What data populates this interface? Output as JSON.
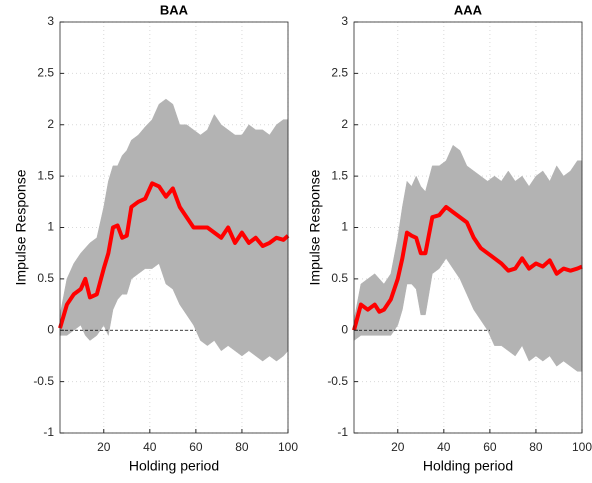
{
  "chart_data": [
    {
      "type": "line",
      "title": "BAA",
      "xlabel": "Holding period",
      "ylabel": "Impulse Response",
      "xlim": [
        1,
        100
      ],
      "xticks": [
        20,
        40,
        60,
        80,
        100
      ],
      "ylim": [
        -1,
        3
      ],
      "yticks": [
        -1,
        -0.5,
        0,
        0.5,
        1,
        1.5,
        2,
        2.5,
        3
      ],
      "grid": true,
      "x": [
        1,
        4,
        7,
        10,
        12,
        14,
        17,
        20,
        22,
        24,
        26,
        28,
        30,
        32,
        35,
        38,
        41,
        44,
        47,
        50,
        53,
        56,
        59,
        62,
        65,
        68,
        71,
        74,
        77,
        80,
        83,
        86,
        89,
        92,
        95,
        98,
        100
      ],
      "series": [
        {
          "color": "#ff0000",
          "values": [
            0.02,
            0.25,
            0.35,
            0.4,
            0.5,
            0.32,
            0.35,
            0.6,
            0.75,
            1.0,
            1.02,
            0.9,
            0.92,
            1.2,
            1.25,
            1.28,
            1.43,
            1.4,
            1.3,
            1.38,
            1.2,
            1.1,
            1.0,
            1.0,
            1.0,
            0.95,
            0.9,
            1.0,
            0.85,
            0.95,
            0.85,
            0.9,
            0.82,
            0.85,
            0.9,
            0.88,
            0.92
          ]
        }
      ],
      "band": {
        "color": "#b3b3b3",
        "upper": [
          0.15,
          0.5,
          0.65,
          0.75,
          0.8,
          0.85,
          0.9,
          1.2,
          1.45,
          1.6,
          1.6,
          1.7,
          1.75,
          1.85,
          1.9,
          1.98,
          2.05,
          2.2,
          2.25,
          2.2,
          2.0,
          2.0,
          1.95,
          1.9,
          1.95,
          2.1,
          2.0,
          1.95,
          1.9,
          1.9,
          2.0,
          1.95,
          1.95,
          1.9,
          2.0,
          2.05,
          2.05
        ],
        "lower": [
          -0.05,
          -0.05,
          0.0,
          0.05,
          -0.05,
          -0.1,
          -0.05,
          0.05,
          -0.05,
          0.2,
          0.3,
          0.35,
          0.35,
          0.5,
          0.55,
          0.6,
          0.6,
          0.65,
          0.45,
          0.4,
          0.25,
          0.15,
          0.05,
          -0.1,
          -0.15,
          -0.1,
          -0.2,
          -0.15,
          -0.2,
          -0.25,
          -0.2,
          -0.25,
          -0.3,
          -0.25,
          -0.3,
          -0.25,
          -0.2
        ]
      },
      "reference_line": {
        "value": 0,
        "x": [
          1,
          60
        ],
        "color": "#000000"
      }
    },
    {
      "type": "line",
      "title": "AAA",
      "xlabel": "Holding period",
      "ylabel": "Impulse Response",
      "xlim": [
        1,
        100
      ],
      "xticks": [
        20,
        40,
        60,
        80,
        100
      ],
      "ylim": [
        -1,
        3
      ],
      "yticks": [
        -1,
        -0.5,
        0,
        0.5,
        1,
        1.5,
        2,
        2.5,
        3
      ],
      "grid": true,
      "x": [
        1,
        4,
        7,
        10,
        12,
        14,
        17,
        20,
        22,
        24,
        26,
        28,
        30,
        32,
        35,
        38,
        41,
        44,
        47,
        50,
        53,
        56,
        59,
        62,
        65,
        68,
        71,
        74,
        77,
        80,
        83,
        86,
        89,
        92,
        95,
        98,
        100
      ],
      "series": [
        {
          "color": "#ff0000",
          "values": [
            0.0,
            0.25,
            0.2,
            0.25,
            0.18,
            0.2,
            0.3,
            0.5,
            0.7,
            0.95,
            0.92,
            0.9,
            0.75,
            0.75,
            1.1,
            1.12,
            1.2,
            1.15,
            1.1,
            1.05,
            0.9,
            0.8,
            0.75,
            0.7,
            0.65,
            0.58,
            0.6,
            0.7,
            0.6,
            0.65,
            0.62,
            0.68,
            0.55,
            0.6,
            0.58,
            0.6,
            0.62
          ]
        }
      ],
      "band": {
        "color": "#b3b3b3",
        "upper": [
          0.1,
          0.45,
          0.5,
          0.55,
          0.5,
          0.45,
          0.55,
          0.9,
          1.2,
          1.45,
          1.4,
          1.5,
          1.4,
          1.35,
          1.6,
          1.6,
          1.65,
          1.8,
          1.75,
          1.6,
          1.55,
          1.5,
          1.45,
          1.5,
          1.45,
          1.55,
          1.45,
          1.5,
          1.4,
          1.5,
          1.55,
          1.45,
          1.6,
          1.5,
          1.55,
          1.65,
          1.65
        ],
        "lower": [
          -0.1,
          -0.05,
          -0.05,
          -0.05,
          -0.05,
          -0.05,
          -0.05,
          0.05,
          0.2,
          0.45,
          0.45,
          0.4,
          0.15,
          0.15,
          0.55,
          0.6,
          0.7,
          0.6,
          0.5,
          0.35,
          0.2,
          0.1,
          0.0,
          -0.15,
          -0.15,
          -0.2,
          -0.25,
          -0.15,
          -0.3,
          -0.25,
          -0.3,
          -0.25,
          -0.35,
          -0.3,
          -0.35,
          -0.4,
          -0.4
        ]
      },
      "reference_line": {
        "value": 0,
        "x": [
          1,
          60
        ],
        "color": "#000000"
      }
    }
  ]
}
